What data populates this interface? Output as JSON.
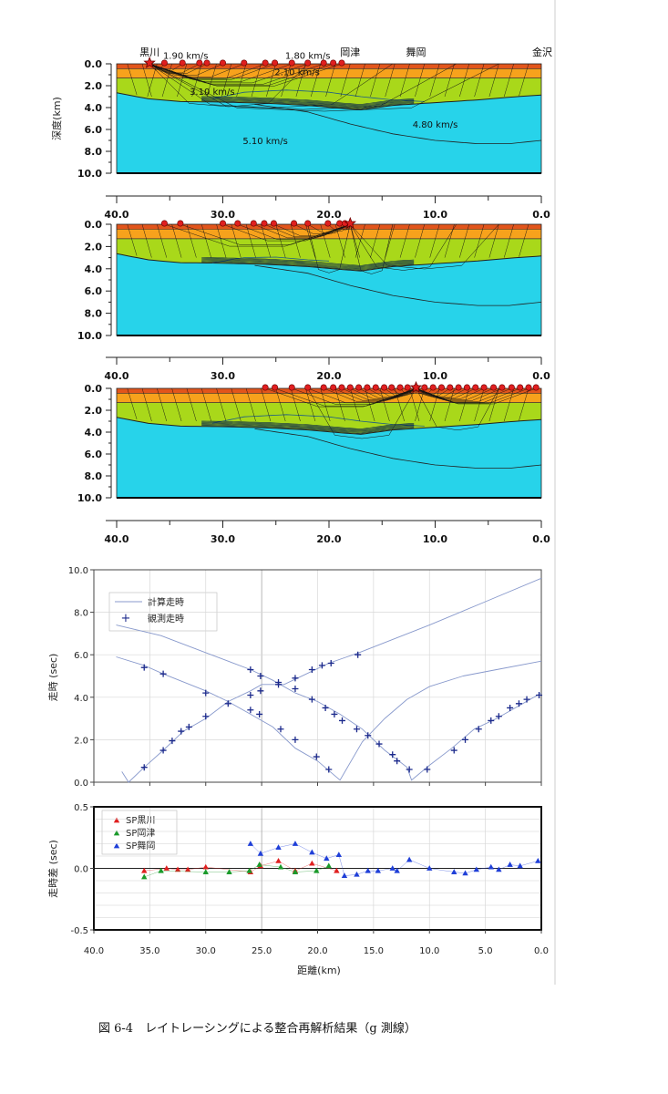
{
  "caption": "図 6-4　レイトレーシングによる整合再解析結果（g 測線）",
  "colors": {
    "layer_top": "#e2551b",
    "layer_orange": "#f7a21c",
    "layer_green": "#a9d81a",
    "layer_cyan": "#27d3ea",
    "ray": "#111111",
    "station": "#e01f1f",
    "calc_line": "#8899cc",
    "obs_marker": "#1c2a8c",
    "sp_kurokawa": "#e02020",
    "sp_okatsu": "#1a9a2a",
    "sp_maioka": "#1f3fd8"
  },
  "chart_data": [
    {
      "type": "section",
      "panel": "ray-section-top",
      "place_labels": [
        {
          "text": "黒川",
          "km": 36.9
        },
        {
          "text": "岡津",
          "km": 18.0
        },
        {
          "text": "舞岡",
          "km": 11.8
        },
        {
          "text": "金沢",
          "km": 0.0
        }
      ],
      "velocity_labels": [
        {
          "text": "1.90 km/s",
          "km": 33.5,
          "depth": -0.8
        },
        {
          "text": "1.80 km/s",
          "km": 22.0,
          "depth": -0.8
        },
        {
          "text": "2.10 km/s",
          "km": 23.0,
          "depth": 0.7
        },
        {
          "text": "3.10 km/s",
          "km": 31.0,
          "depth": 2.5
        },
        {
          "text": "4.80 km/s",
          "km": 10.0,
          "depth": 5.5
        },
        {
          "text": "5.10 km/s",
          "km": 26.0,
          "depth": 7.0
        }
      ],
      "ylabel": "深度(km)",
      "y_ticks": [
        "0.0",
        "2.0",
        "4.0",
        "6.0",
        "8.0",
        "10.0"
      ],
      "x_ticks": [
        "40.0",
        "30.0",
        "20.0",
        "10.0",
        "0.0"
      ],
      "xlim": [
        40,
        0
      ],
      "ylim": [
        0,
        10
      ],
      "shot_km": 36.9,
      "stations_km": [
        35.5,
        33.8,
        32.2,
        31.5,
        30.0,
        28.0,
        26.0,
        25.1,
        23.5,
        22.0,
        20.5,
        19.6,
        18.8
      ]
    },
    {
      "type": "section",
      "panel": "ray-section-middle",
      "x_ticks": [
        "40.0",
        "30.0",
        "20.0",
        "10.0",
        "0.0"
      ],
      "y_ticks": [
        "0.0",
        "2.0",
        "4.0",
        "6.0",
        "8.0",
        "10.0"
      ],
      "xlim": [
        40,
        0
      ],
      "ylim": [
        0,
        10
      ],
      "shot_km": 18.0,
      "stations_km": [
        35.5,
        34.0,
        30.0,
        28.6,
        27.1,
        26.1,
        25.2,
        23.3,
        22.0,
        20.1,
        19.0,
        18.5
      ]
    },
    {
      "type": "section",
      "panel": "ray-section-bottom",
      "x_ticks": [
        "40.0",
        "30.0",
        "20.0",
        "10.0",
        "0.0"
      ],
      "y_ticks": [
        "0.0",
        "2.0",
        "4.0",
        "6.0",
        "8.0",
        "10.0"
      ],
      "xlim": [
        40,
        0
      ],
      "ylim": [
        0,
        10
      ],
      "shot_km": 11.8,
      "stations_km": [
        26.0,
        25.1,
        23.5,
        22.0,
        20.5,
        19.6,
        18.8,
        18.0,
        17.2,
        16.4,
        15.6,
        14.8,
        14.1,
        13.3,
        12.6,
        11.8,
        11.0,
        10.2,
        9.4,
        8.6,
        7.8,
        7.0,
        6.2,
        5.4,
        4.5,
        3.7,
        2.8,
        2.0,
        1.2,
        0.5
      ]
    },
    {
      "type": "line",
      "panel": "travel-time",
      "ylabel": "走時 (sec)",
      "xlim": [
        40,
        0
      ],
      "ylim": [
        0,
        10
      ],
      "x_ticks": [
        "40.0",
        "35.0",
        "30.0",
        "25.0",
        "20.0",
        "15.0",
        "10.0",
        "5.0",
        "0.0"
      ],
      "y_ticks": [
        "0.0",
        "2.0",
        "4.0",
        "6.0",
        "8.0",
        "10.0"
      ],
      "legend": {
        "calc": "計算走時",
        "obs": "観測走時",
        "position": "top-left"
      },
      "calculated": [
        [
          [
            37.5,
            0.5
          ],
          [
            36.9,
            0.0
          ],
          [
            35.5,
            0.7
          ],
          [
            33.8,
            1.5
          ],
          [
            32.0,
            2.4
          ],
          [
            30.0,
            3.0
          ],
          [
            28.0,
            3.8
          ],
          [
            26.0,
            4.3
          ],
          [
            25.0,
            4.6
          ],
          [
            23.0,
            4.6
          ],
          [
            21.0,
            5.1
          ],
          [
            19.0,
            5.6
          ],
          [
            16.3,
            6.1
          ],
          [
            10.0,
            7.4
          ],
          [
            5.0,
            8.5
          ],
          [
            0.0,
            9.6
          ]
        ],
        [
          [
            38.0,
            5.9
          ],
          [
            35.5,
            5.5
          ],
          [
            33.8,
            5.1
          ],
          [
            30.0,
            4.3
          ],
          [
            28.0,
            3.8
          ],
          [
            26.0,
            3.2
          ],
          [
            24.0,
            2.6
          ],
          [
            22.0,
            1.6
          ],
          [
            20.0,
            1.0
          ],
          [
            18.0,
            0.1
          ],
          [
            16.0,
            1.9
          ],
          [
            14.0,
            3.0
          ],
          [
            12.0,
            3.9
          ],
          [
            10.0,
            4.5
          ],
          [
            7.0,
            5.0
          ],
          [
            4.0,
            5.3
          ],
          [
            0.0,
            5.7
          ]
        ],
        [
          [
            38.0,
            7.4
          ],
          [
            34.0,
            6.9
          ],
          [
            30.0,
            6.1
          ],
          [
            28.0,
            5.7
          ],
          [
            26.0,
            5.3
          ],
          [
            24.0,
            4.8
          ],
          [
            22.0,
            4.2
          ],
          [
            20.0,
            3.8
          ],
          [
            18.0,
            3.2
          ],
          [
            16.0,
            2.5
          ],
          [
            14.0,
            1.5
          ],
          [
            12.0,
            0.7
          ],
          [
            11.6,
            0.1
          ],
          [
            10.0,
            0.8
          ],
          [
            8.0,
            1.6
          ],
          [
            6.0,
            2.5
          ],
          [
            4.0,
            3.0
          ],
          [
            2.0,
            3.6
          ],
          [
            0.0,
            4.2
          ]
        ]
      ],
      "observed": [
        [
          [
            35.5,
            0.7
          ],
          [
            33.8,
            1.5
          ],
          [
            33.0,
            1.95
          ],
          [
            32.2,
            2.4
          ],
          [
            31.5,
            2.6
          ],
          [
            30.0,
            3.1
          ],
          [
            28.0,
            3.7
          ],
          [
            26.0,
            4.1
          ],
          [
            25.1,
            4.3
          ],
          [
            23.5,
            4.6
          ],
          [
            22.0,
            4.9
          ],
          [
            20.5,
            5.3
          ],
          [
            19.6,
            5.5
          ],
          [
            18.8,
            5.6
          ],
          [
            16.4,
            6.0
          ]
        ],
        [
          [
            35.5,
            5.4
          ],
          [
            33.8,
            5.1
          ],
          [
            30.0,
            4.2
          ],
          [
            26.0,
            3.4
          ],
          [
            25.2,
            3.2
          ],
          [
            23.3,
            2.5
          ],
          [
            22.0,
            2.0
          ],
          [
            20.1,
            1.2
          ],
          [
            19.0,
            0.6
          ]
        ],
        [
          [
            26.0,
            5.3
          ],
          [
            25.1,
            5.0
          ],
          [
            23.5,
            4.7
          ],
          [
            22.0,
            4.4
          ],
          [
            20.5,
            3.9
          ],
          [
            19.3,
            3.5
          ],
          [
            18.5,
            3.2
          ],
          [
            17.8,
            2.9
          ],
          [
            16.5,
            2.5
          ],
          [
            15.5,
            2.2
          ],
          [
            14.5,
            1.8
          ],
          [
            13.3,
            1.3
          ],
          [
            12.9,
            1.0
          ],
          [
            11.8,
            0.6
          ],
          [
            10.2,
            0.6
          ],
          [
            7.8,
            1.5
          ],
          [
            6.8,
            2.0
          ],
          [
            5.6,
            2.5
          ],
          [
            4.5,
            2.9
          ],
          [
            3.8,
            3.1
          ],
          [
            2.8,
            3.5
          ],
          [
            2.0,
            3.7
          ],
          [
            1.3,
            3.9
          ],
          [
            0.2,
            4.1
          ]
        ]
      ]
    },
    {
      "type": "scatter",
      "panel": "residual",
      "ylabel": "走時差 (sec)",
      "xlabel": "距離(km)",
      "xlim": [
        40,
        0
      ],
      "ylim": [
        -0.5,
        0.5
      ],
      "x_ticks": [
        "40.0",
        "35.0",
        "30.0",
        "25.0",
        "20.0",
        "15.0",
        "10.0",
        "5.0",
        "0.0"
      ],
      "y_ticks": [
        "0.5",
        "0.0",
        "-0.5"
      ],
      "legend": {
        "position": "top-left"
      },
      "series": [
        {
          "name": "SP黒川",
          "color": "#e02020",
          "points": [
            [
              35.5,
              -0.02
            ],
            [
              33.5,
              0.0
            ],
            [
              32.5,
              -0.01
            ],
            [
              31.6,
              -0.01
            ],
            [
              30.0,
              0.01
            ],
            [
              26.0,
              -0.03
            ],
            [
              25.1,
              0.02
            ],
            [
              23.5,
              0.06
            ],
            [
              22.0,
              -0.02
            ],
            [
              20.5,
              0.04
            ],
            [
              18.3,
              -0.02
            ]
          ]
        },
        {
          "name": "SP岡津",
          "color": "#1a9a2a",
          "points": [
            [
              35.5,
              -0.07
            ],
            [
              34.0,
              -0.02
            ],
            [
              30.0,
              -0.03
            ],
            [
              27.9,
              -0.03
            ],
            [
              26.1,
              -0.02
            ],
            [
              25.2,
              0.03
            ],
            [
              23.3,
              0.01
            ],
            [
              22.0,
              -0.03
            ],
            [
              20.1,
              -0.02
            ],
            [
              19.0,
              0.02
            ]
          ]
        },
        {
          "name": "SP舞岡",
          "color": "#1f3fd8",
          "points": [
            [
              26.0,
              0.2
            ],
            [
              25.1,
              0.12
            ],
            [
              23.5,
              0.17
            ],
            [
              22.0,
              0.2
            ],
            [
              20.5,
              0.13
            ],
            [
              19.2,
              0.08
            ],
            [
              18.1,
              0.11
            ],
            [
              17.6,
              -0.06
            ],
            [
              16.5,
              -0.05
            ],
            [
              15.5,
              -0.02
            ],
            [
              14.6,
              -0.02
            ],
            [
              13.3,
              0.0
            ],
            [
              12.9,
              -0.02
            ],
            [
              11.8,
              0.07
            ],
            [
              10.0,
              0.0
            ],
            [
              7.8,
              -0.03
            ],
            [
              6.8,
              -0.04
            ],
            [
              5.8,
              -0.01
            ],
            [
              4.5,
              0.01
            ],
            [
              3.8,
              -0.01
            ],
            [
              2.8,
              0.03
            ],
            [
              1.9,
              0.02
            ],
            [
              0.3,
              0.06
            ]
          ]
        }
      ]
    }
  ]
}
